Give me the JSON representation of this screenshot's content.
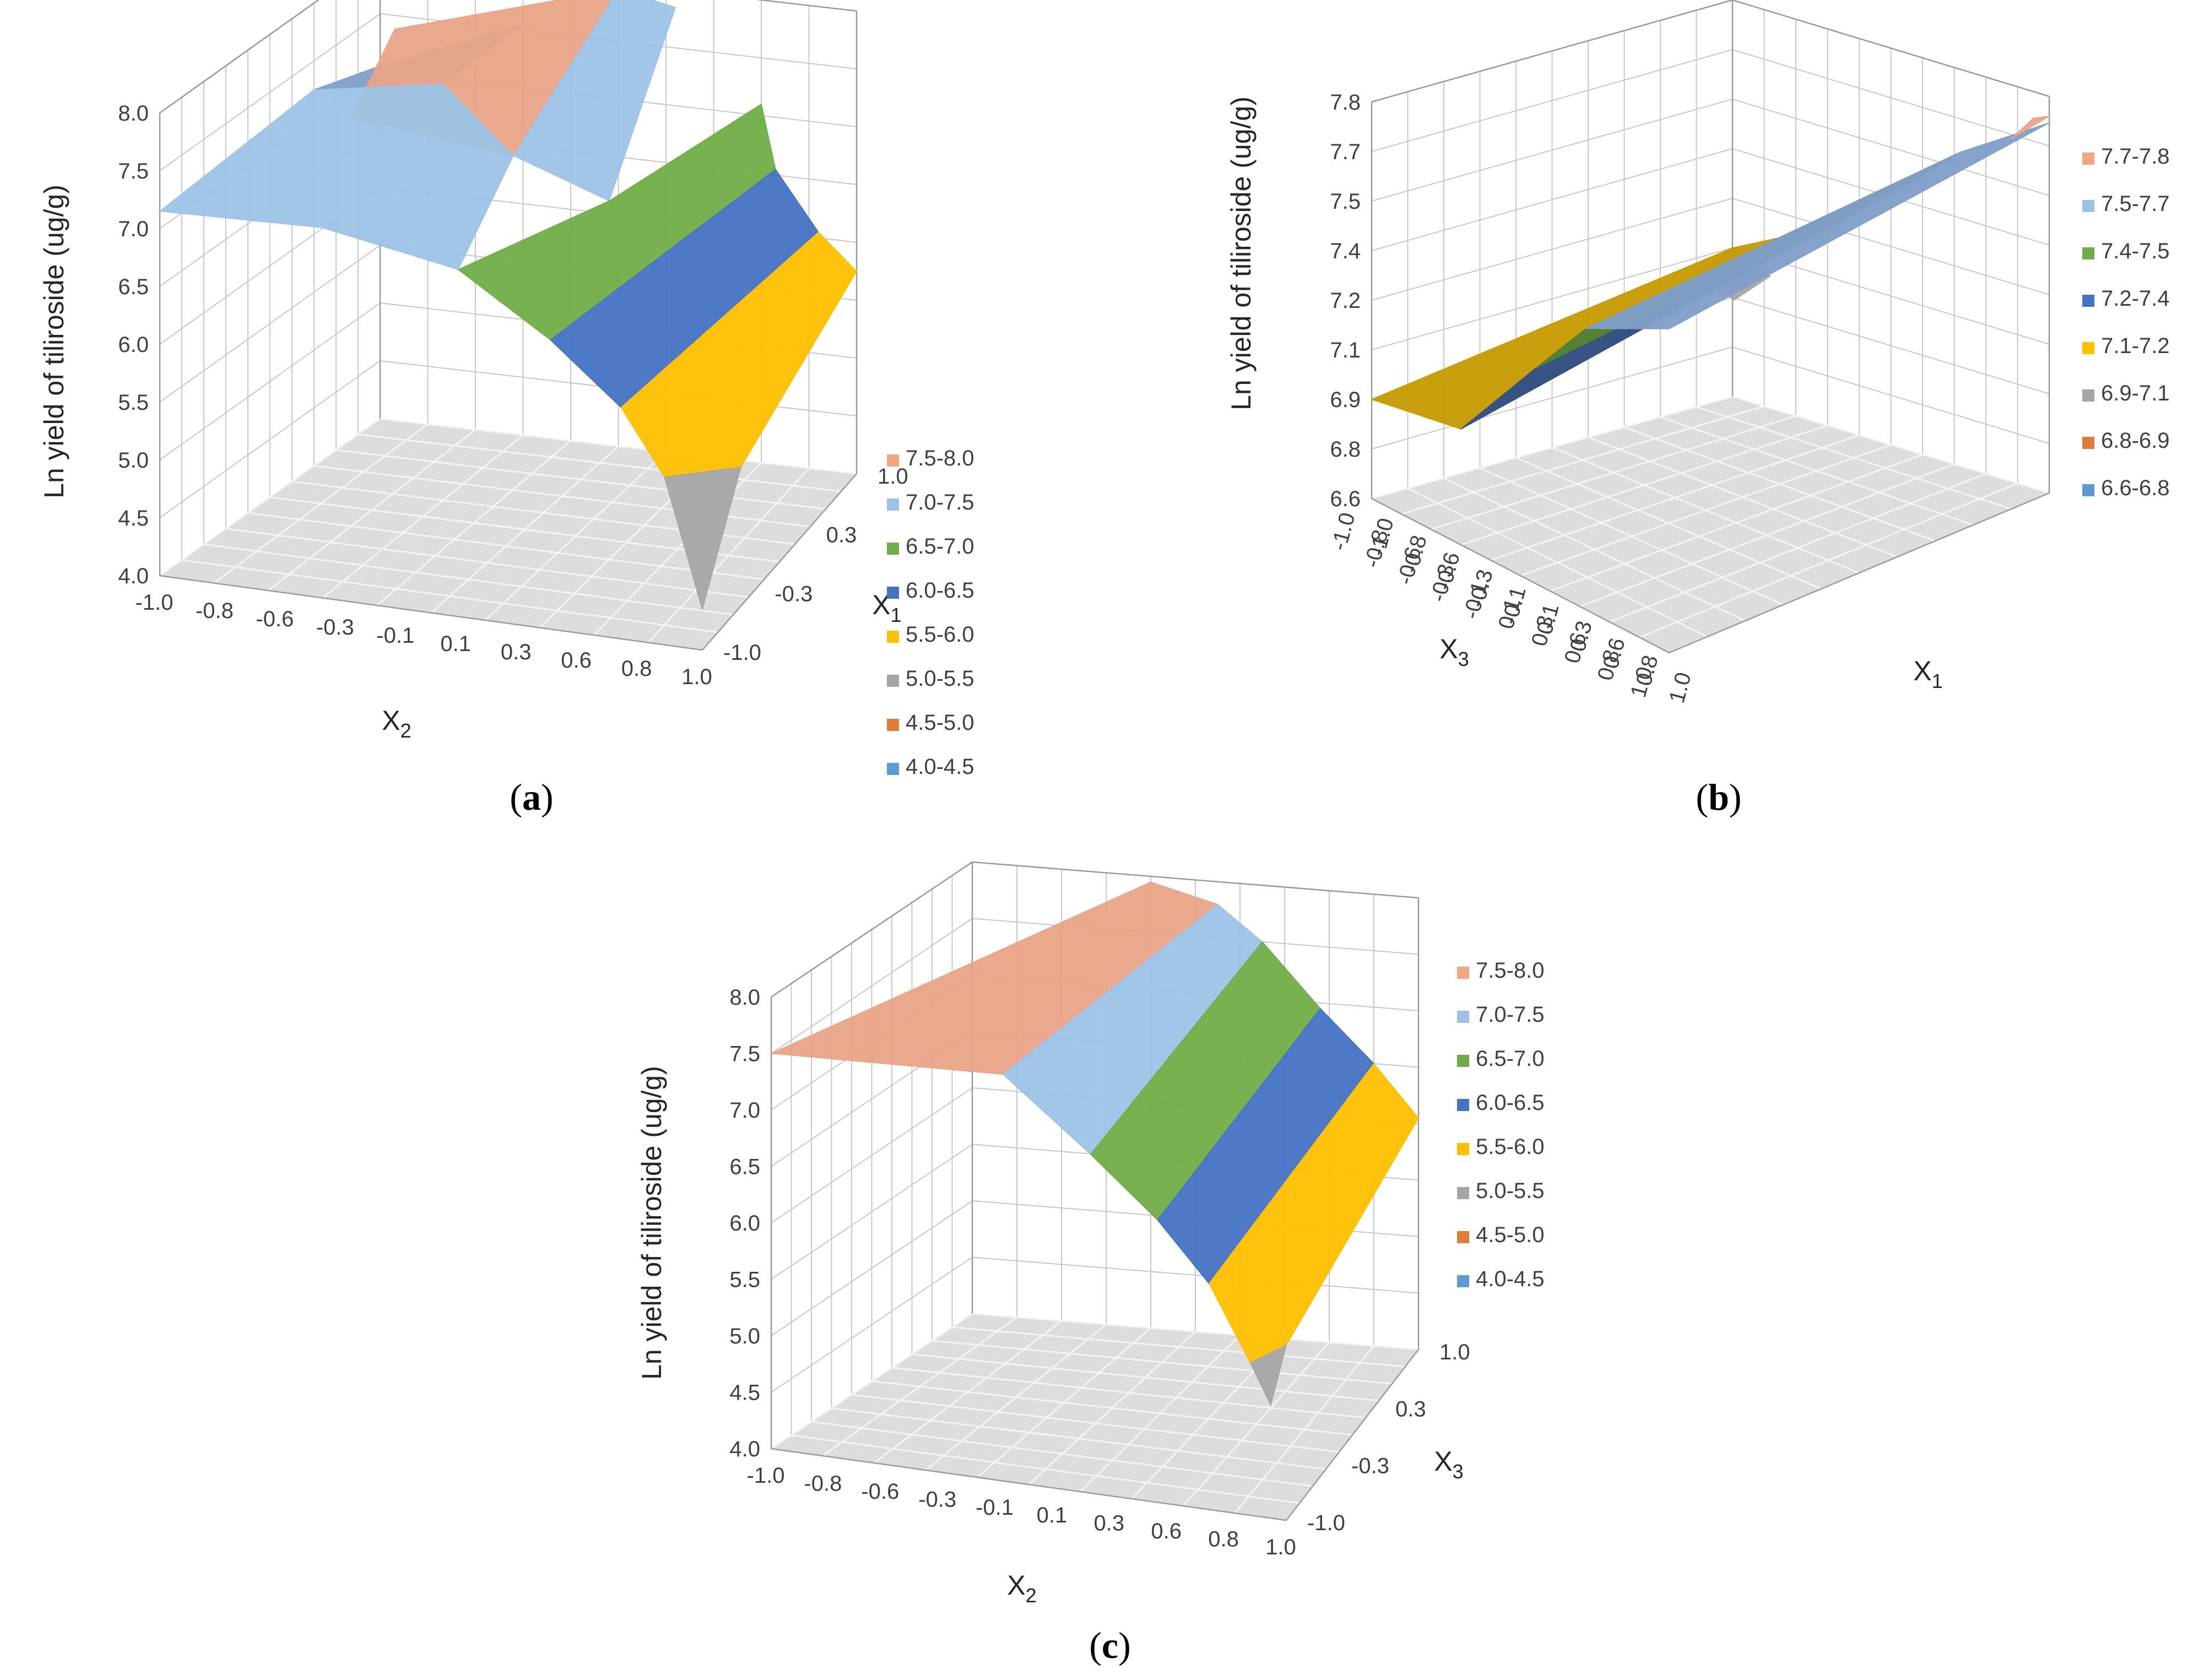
{
  "chart_data": [
    {
      "panel": "a",
      "type": "surface",
      "caption": "a",
      "zlabel": "Ln yield of tiliroside (ug/g)",
      "xlabel": "X",
      "xlabel_sub": "2",
      "ylabel": "X",
      "ylabel_sub": "1",
      "zlim": [
        4.0,
        8.0
      ],
      "z_ticks": [
        "4.0",
        "4.5",
        "5.0",
        "5.5",
        "6.0",
        "6.5",
        "7.0",
        "7.5",
        "8.0"
      ],
      "x_ticks": [
        "-1.0",
        "-0.8",
        "-0.6",
        "-0.3",
        "-0.1",
        "0.1",
        "0.3",
        "0.6",
        "0.8",
        "1.0"
      ],
      "y_ticks": [
        "-1.0",
        "-0.3",
        "0.3",
        "1.0"
      ],
      "legend": [
        {
          "label": "7.5-8.0",
          "color": "#f4a582"
        },
        {
          "label": "7.0-7.5",
          "color": "#9cc3e6"
        },
        {
          "label": "6.5-7.0",
          "color": "#70ad47"
        },
        {
          "label": "6.0-6.5",
          "color": "#4472c4"
        },
        {
          "label": "5.5-6.0",
          "color": "#ffc000"
        },
        {
          "label": "5.0-5.5",
          "color": "#a5a5a5"
        },
        {
          "label": "4.5-5.0",
          "color": "#e07b39"
        },
        {
          "label": "4.0-4.5",
          "color": "#5b9bd5"
        }
      ]
    },
    {
      "panel": "b",
      "type": "surface",
      "caption": "b",
      "zlabel": "Ln yield of tiliroside (ug/g)",
      "xlabel": "X",
      "xlabel_sub": "1",
      "ylabel": "X",
      "ylabel_sub": "3",
      "zlim": [
        6.6,
        7.8
      ],
      "z_ticks": [
        "6.6",
        "6.8",
        "6.9",
        "7.1",
        "7.2",
        "7.4",
        "7.5",
        "7.7",
        "7.8"
      ],
      "x_ticks": [
        "-1.0",
        "-0.8",
        "-0.6",
        "-0.3",
        "-0.1",
        "0.1",
        "0.3",
        "0.6",
        "0.8",
        "1.0"
      ],
      "y_ticks": [
        "-1.0",
        "-0.8",
        "-0.6",
        "-0.3",
        "-0.1",
        "0.1",
        "0.3",
        "0.6",
        "0.8",
        "1.0"
      ],
      "legend": [
        {
          "label": "7.7-7.8",
          "color": "#f4a582"
        },
        {
          "label": "7.5-7.7",
          "color": "#9cc3e6"
        },
        {
          "label": "7.4-7.5",
          "color": "#70ad47"
        },
        {
          "label": "7.2-7.4",
          "color": "#4472c4"
        },
        {
          "label": "7.1-7.2",
          "color": "#ffc000"
        },
        {
          "label": "6.9-7.1",
          "color": "#a5a5a5"
        },
        {
          "label": "6.8-6.9",
          "color": "#e07b39"
        },
        {
          "label": "6.6-6.8",
          "color": "#5b9bd5"
        }
      ]
    },
    {
      "panel": "c",
      "type": "surface",
      "caption": "c",
      "zlabel": "Ln yield of tiliroside (ug/g)",
      "xlabel": "X",
      "xlabel_sub": "2",
      "ylabel": "X",
      "ylabel_sub": "3",
      "zlim": [
        4.0,
        8.0
      ],
      "z_ticks": [
        "4.0",
        "4.5",
        "5.0",
        "5.5",
        "6.0",
        "6.5",
        "7.0",
        "7.5",
        "8.0"
      ],
      "x_ticks": [
        "-1.0",
        "-0.8",
        "-0.6",
        "-0.3",
        "-0.1",
        "0.1",
        "0.3",
        "0.6",
        "0.8",
        "1.0"
      ],
      "y_ticks": [
        "-1.0",
        "-0.3",
        "0.3",
        "1.0"
      ],
      "legend": [
        {
          "label": "7.5-8.0",
          "color": "#f4a582"
        },
        {
          "label": "7.0-7.5",
          "color": "#9cc3e6"
        },
        {
          "label": "6.5-7.0",
          "color": "#70ad47"
        },
        {
          "label": "6.0-6.5",
          "color": "#4472c4"
        },
        {
          "label": "5.5-6.0",
          "color": "#ffc000"
        },
        {
          "label": "5.0-5.5",
          "color": "#a5a5a5"
        },
        {
          "label": "4.5-5.0",
          "color": "#e07b39"
        },
        {
          "label": "4.0-4.5",
          "color": "#5b9bd5"
        }
      ]
    }
  ]
}
